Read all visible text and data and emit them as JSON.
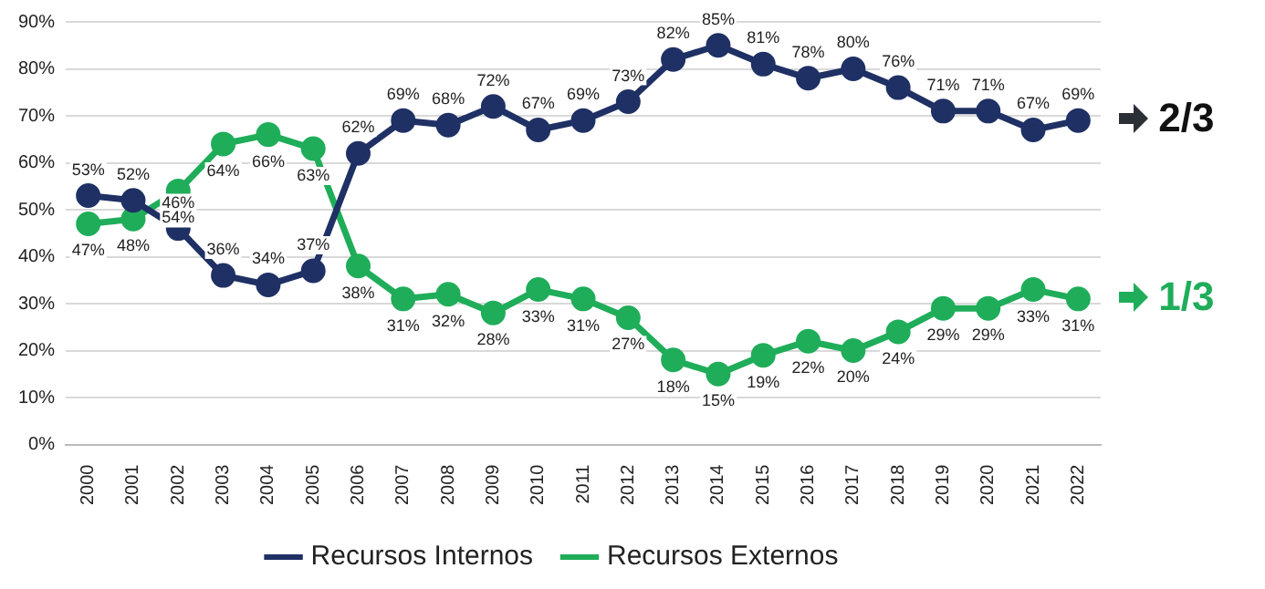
{
  "chart_data": {
    "type": "line",
    "categories": [
      "2000",
      "2001",
      "2002",
      "2003",
      "2004",
      "2005",
      "2006",
      "2007",
      "2008",
      "2009",
      "2010",
      "2011",
      "2012",
      "2013",
      "2014",
      "2015",
      "2016",
      "2017",
      "2018",
      "2019",
      "2020",
      "2021",
      "2022"
    ],
    "series": [
      {
        "name": "Recursos Internos",
        "color": "#1f3064",
        "values": [
          53,
          52,
          46,
          36,
          34,
          37,
          62,
          69,
          68,
          72,
          67,
          69,
          73,
          82,
          85,
          81,
          78,
          80,
          76,
          71,
          71,
          67,
          69
        ],
        "value_labels": [
          "53%",
          "52%",
          "46%",
          "36%",
          "34%",
          "37%",
          "62%",
          "69%",
          "68%",
          "72%",
          "67%",
          "69%",
          "73%",
          "82%",
          "85%",
          "81%",
          "78%",
          "80%",
          "76%",
          "71%",
          "71%",
          "67%",
          "69%"
        ]
      },
      {
        "name": "Recursos Externos",
        "color": "#1fad5a",
        "values": [
          47,
          48,
          54,
          64,
          66,
          63,
          38,
          31,
          32,
          28,
          33,
          31,
          27,
          18,
          15,
          19,
          22,
          20,
          24,
          29,
          29,
          33,
          31
        ],
        "value_labels": [
          "47%",
          "48%",
          "54%",
          "64%",
          "66%",
          "63%",
          "38%",
          "31%",
          "32%",
          "28%",
          "33%",
          "31%",
          "27%",
          "18%",
          "15%",
          "19%",
          "22%",
          "20%",
          "24%",
          "29%",
          "29%",
          "33%",
          "31%"
        ]
      }
    ],
    "ylim": [
      0,
      90
    ],
    "yticks": [
      {
        "value": 0,
        "label": "0%"
      },
      {
        "value": 10,
        "label": "10%"
      },
      {
        "value": 20,
        "label": "20%"
      },
      {
        "value": 30,
        "label": "30%"
      },
      {
        "value": 40,
        "label": "40%"
      },
      {
        "value": 50,
        "label": "50%"
      },
      {
        "value": 60,
        "label": "60%"
      },
      {
        "value": 70,
        "label": "70%"
      },
      {
        "value": 80,
        "label": "80%"
      },
      {
        "value": 90,
        "label": "90%"
      }
    ],
    "grid": "y",
    "legend": "bottom",
    "marker": "circle",
    "line_style": "solid",
    "annotations": [
      "2/3",
      "1/3"
    ]
  }
}
